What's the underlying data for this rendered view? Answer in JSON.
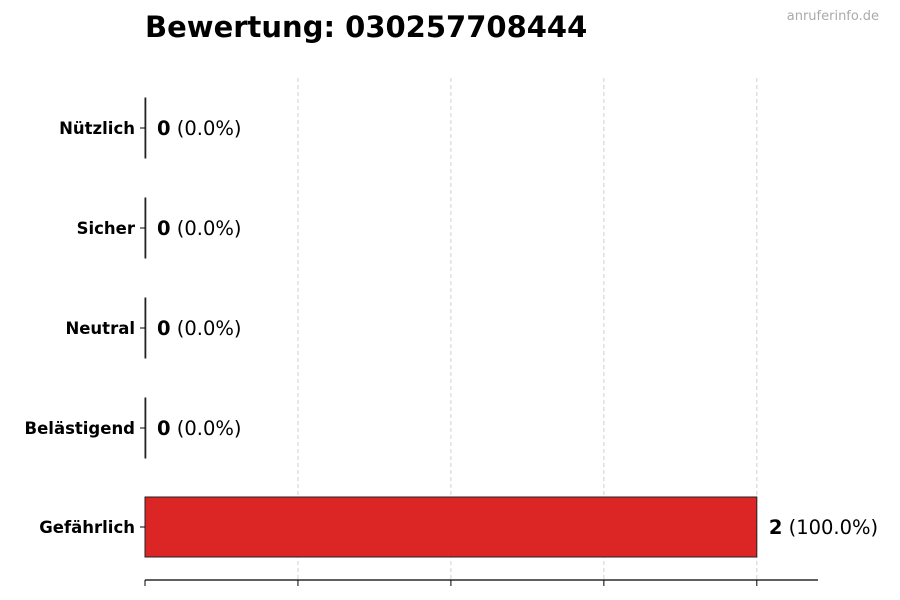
{
  "chart_data": {
    "type": "bar",
    "orientation": "horizontal",
    "title": "Bewertung: 030257708444",
    "watermark": "anruferinfo.de",
    "categories": [
      "Nützlich",
      "Sicher",
      "Neutral",
      "Belästigend",
      "Gefährlich"
    ],
    "values": [
      0,
      0,
      0,
      0,
      2
    ],
    "labels": [
      {
        "count": "0",
        "pct": "(0.0%)"
      },
      {
        "count": "0",
        "pct": "(0.0%)"
      },
      {
        "count": "0",
        "pct": "(0.0%)"
      },
      {
        "count": "0",
        "pct": "(0.0%)"
      },
      {
        "count": "2",
        "pct": "(100.0%)"
      }
    ],
    "xlim": [
      0,
      2.2
    ],
    "xticks": [
      0,
      0.5,
      1,
      1.5,
      2
    ],
    "grid": "vertical dashed",
    "bar_color": "#dc2626",
    "xlabel": "",
    "ylabel": ""
  }
}
